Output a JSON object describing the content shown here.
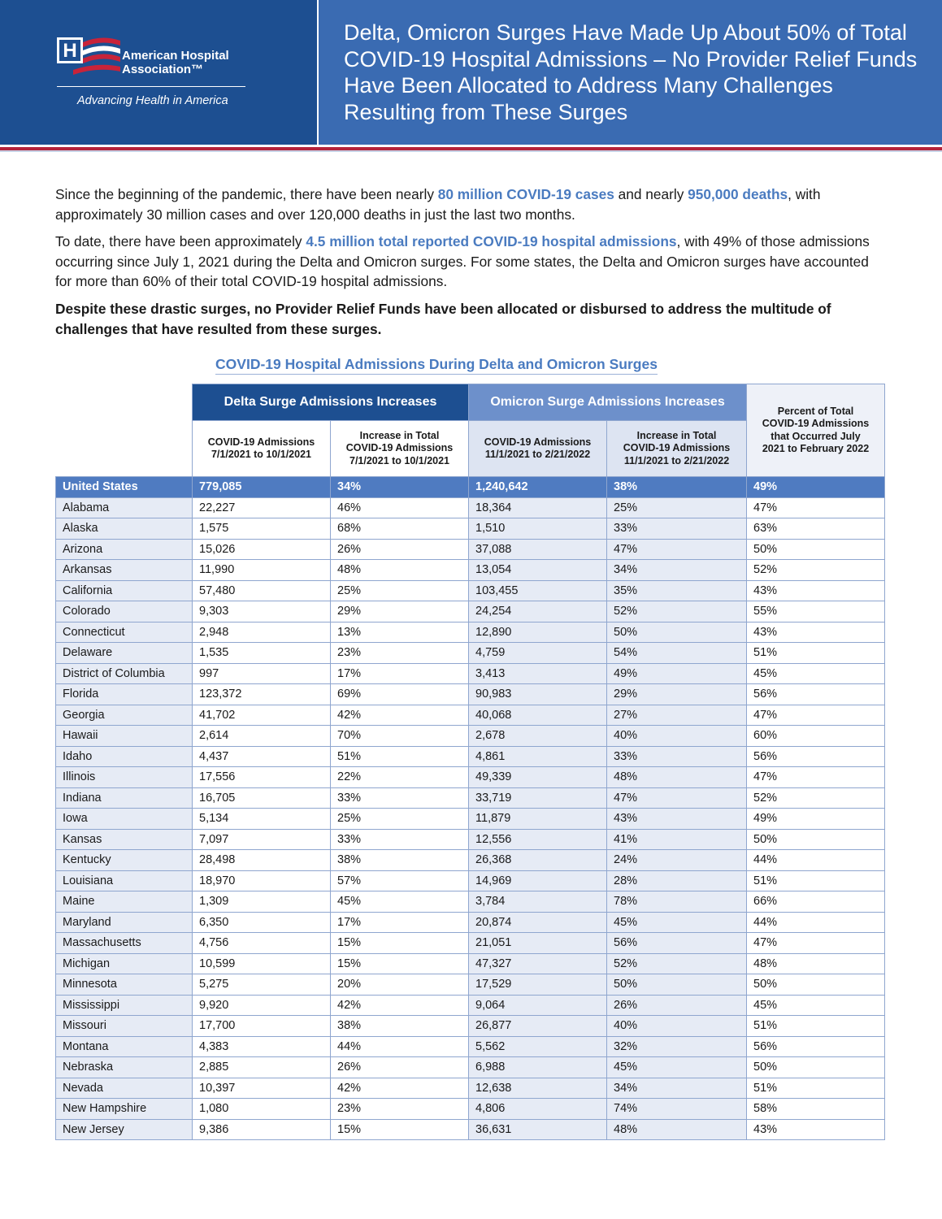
{
  "header": {
    "org_name": [
      "American Hospital",
      "Association™"
    ],
    "tagline": "Advancing Health in America",
    "title": "Delta, Omicron Surges Have Made Up About 50% of Total COVID-19 Hospital Admissions – No Provider Relief Funds Have Been Allocated to Address Many Challenges Resulting from These Surges"
  },
  "paragraphs": [
    [
      "Since the beginning of the pandemic, there have been nearly ",
      "80 million COVID-19 cases",
      " and nearly ",
      "950,000 deaths",
      ", with approximately 30 million cases and over 120,000 deaths in just the last two months."
    ],
    [
      "To date, there have been approximately ",
      "4.5 million total reported COVID-19 hospital admissions",
      ", with 49% of those admissions occurring since July 1, 2021 during the Delta and Omicron surges. For some states, the Delta and Omicron surges have accounted for more than 60% of their total COVID-19 hospital admissions."
    ]
  ],
  "bold_paragraph": "Despite these drastic surges, no Provider Relief Funds have been allocated or disbursed to address the multitude of challenges that have resulted from these surges.",
  "table": {
    "title": "COVID-19 Hospital Admissions During Delta and Omicron Surges",
    "groups": [
      "Delta Surge Admissions Increases",
      "Omicron Surge Admissions Increases"
    ],
    "columns": [
      [
        "COVID-19 Admissions",
        "7/1/2021 to 10/1/2021"
      ],
      [
        "Increase in Total",
        "COVID-19 Admissions",
        "7/1/2021 to 10/1/2021"
      ],
      [
        "COVID-19 Admissions",
        "11/1/2021 to 2/21/2022"
      ],
      [
        "Increase in Total",
        "COVID-19 Admissions",
        "11/1/2021 to 2/21/2022"
      ],
      [
        "Percent of Total",
        "COVID-19 Admissions",
        "that Occurred July",
        "2021 to February 2022"
      ]
    ],
    "rows": [
      [
        "United States",
        "779,085",
        "34%",
        "1,240,642",
        "38%",
        "49%"
      ],
      [
        "Alabama",
        "22,227",
        "46%",
        "18,364",
        "25%",
        "47%"
      ],
      [
        "Alaska",
        "1,575",
        "68%",
        "1,510",
        "33%",
        "63%"
      ],
      [
        "Arizona",
        "15,026",
        "26%",
        "37,088",
        "47%",
        "50%"
      ],
      [
        "Arkansas",
        "11,990",
        "48%",
        "13,054",
        "34%",
        "52%"
      ],
      [
        "California",
        "57,480",
        "25%",
        "103,455",
        "35%",
        "43%"
      ],
      [
        "Colorado",
        "9,303",
        "29%",
        "24,254",
        "52%",
        "55%"
      ],
      [
        "Connecticut",
        "2,948",
        "13%",
        "12,890",
        "50%",
        "43%"
      ],
      [
        "Delaware",
        "1,535",
        "23%",
        "4,759",
        "54%",
        "51%"
      ],
      [
        "District of Columbia",
        "997",
        "17%",
        "3,413",
        "49%",
        "45%"
      ],
      [
        "Florida",
        "123,372",
        "69%",
        "90,983",
        "29%",
        "56%"
      ],
      [
        "Georgia",
        "41,702",
        "42%",
        "40,068",
        "27%",
        "47%"
      ],
      [
        "Hawaii",
        "2,614",
        "70%",
        "2,678",
        "40%",
        "60%"
      ],
      [
        "Idaho",
        "4,437",
        "51%",
        "4,861",
        "33%",
        "56%"
      ],
      [
        "Illinois",
        "17,556",
        "22%",
        "49,339",
        "48%",
        "47%"
      ],
      [
        "Indiana",
        "16,705",
        "33%",
        "33,719",
        "47%",
        "52%"
      ],
      [
        "Iowa",
        "5,134",
        "25%",
        "11,879",
        "43%",
        "49%"
      ],
      [
        "Kansas",
        "7,097",
        "33%",
        "12,556",
        "41%",
        "50%"
      ],
      [
        "Kentucky",
        "28,498",
        "38%",
        "26,368",
        "24%",
        "44%"
      ],
      [
        "Louisiana",
        "18,970",
        "57%",
        "14,969",
        "28%",
        "51%"
      ],
      [
        "Maine",
        "1,309",
        "45%",
        "3,784",
        "78%",
        "66%"
      ],
      [
        "Maryland",
        "6,350",
        "17%",
        "20,874",
        "45%",
        "44%"
      ],
      [
        "Massachusetts",
        "4,756",
        "15%",
        "21,051",
        "56%",
        "47%"
      ],
      [
        "Michigan",
        "10,599",
        "15%",
        "47,327",
        "52%",
        "48%"
      ],
      [
        "Minnesota",
        "5,275",
        "20%",
        "17,529",
        "50%",
        "50%"
      ],
      [
        "Mississippi",
        "9,920",
        "42%",
        "9,064",
        "26%",
        "45%"
      ],
      [
        "Missouri",
        "17,700",
        "38%",
        "26,877",
        "40%",
        "51%"
      ],
      [
        "Montana",
        "4,383",
        "44%",
        "5,562",
        "32%",
        "56%"
      ],
      [
        "Nebraska",
        "2,885",
        "26%",
        "6,988",
        "45%",
        "50%"
      ],
      [
        "Nevada",
        "10,397",
        "42%",
        "12,638",
        "34%",
        "51%"
      ],
      [
        "New Hampshire",
        "1,080",
        "23%",
        "4,806",
        "74%",
        "58%"
      ],
      [
        "New Jersey",
        "9,386",
        "15%",
        "36,631",
        "48%",
        "43%"
      ]
    ]
  }
}
